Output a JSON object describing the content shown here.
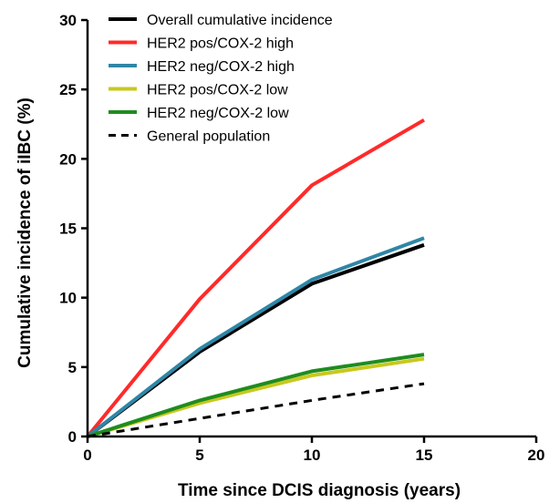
{
  "chart_data": {
    "type": "line",
    "xlabel": "Time since DCIS diagnosis (years)",
    "ylabel": "Cumulative incidence of iIBC (%)",
    "xlim": [
      0,
      20
    ],
    "ylim": [
      0,
      30
    ],
    "xticks": [
      "0",
      "5",
      "10",
      "15",
      "20"
    ],
    "yticks": [
      "0",
      "5",
      "10",
      "15",
      "20",
      "25",
      "30"
    ],
    "grid": false,
    "legend_position": "top-left",
    "series": [
      {
        "name": "Overall cumulative incidence",
        "color": "#000000",
        "dash": "solid",
        "x": [
          0,
          5,
          10,
          15
        ],
        "y": [
          0,
          6.1,
          11.0,
          13.8
        ]
      },
      {
        "name": "HER2 pos/COX-2 high",
        "color": "#ff2a2a",
        "dash": "solid",
        "x": [
          0,
          5,
          10,
          15
        ],
        "y": [
          0,
          9.9,
          18.1,
          22.8
        ]
      },
      {
        "name": "HER2 neg/COX-2 high",
        "color": "#2f86a6",
        "dash": "solid",
        "x": [
          0,
          5,
          10,
          15
        ],
        "y": [
          0,
          6.3,
          11.3,
          14.3
        ]
      },
      {
        "name": "HER2 pos/COX-2 low",
        "color": "#c8c81e",
        "dash": "solid",
        "x": [
          0,
          5,
          10,
          15
        ],
        "y": [
          0,
          2.4,
          4.4,
          5.6
        ]
      },
      {
        "name": "HER2 neg/COX-2 low",
        "color": "#1f8c1f",
        "dash": "solid",
        "x": [
          0,
          5,
          10,
          15
        ],
        "y": [
          0,
          2.6,
          4.7,
          5.9
        ]
      },
      {
        "name": "General population",
        "color": "#000000",
        "dash": "dashed",
        "x": [
          0,
          5,
          10,
          15
        ],
        "y": [
          0,
          1.3,
          2.6,
          3.8
        ]
      }
    ]
  }
}
